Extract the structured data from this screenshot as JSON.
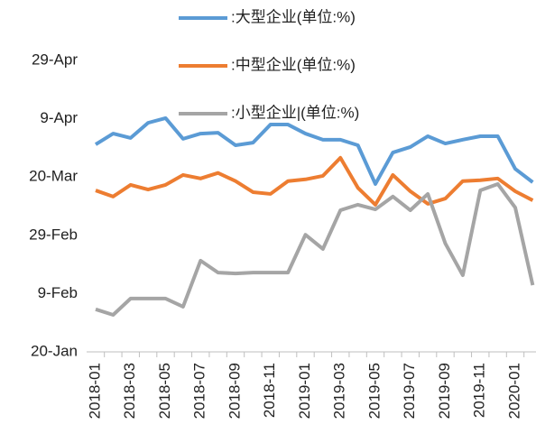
{
  "chart_data": {
    "type": "line",
    "categories": [
      "2018-01",
      null,
      "2018-03",
      null,
      "2018-05",
      null,
      "2018-07",
      null,
      "2018-09",
      null,
      "2018-11",
      null,
      "2019-01",
      null,
      "2019-03",
      null,
      "2019-05",
      null,
      "2019-07",
      null,
      "2019-09",
      null,
      "2019-11",
      null,
      "2020-01",
      null
    ],
    "series": [
      {
        "name": ":大型企业(单位:%)",
        "color": "#5b9bd5",
        "values": [
          91.2,
          94.9,
          93.4,
          98.6,
          100.2,
          93.1,
          94.9,
          95.2,
          90.9,
          91.8,
          98.0,
          98.0,
          94.9,
          92.8,
          92.8,
          90.9,
          77.6,
          88.4,
          90.3,
          94.0,
          91.5,
          92.8,
          94.0,
          94.0,
          82.8,
          78.2
        ]
      },
      {
        "name": ":中型企业(单位:%)",
        "color": "#ed7d31",
        "values": [
          75.4,
          73.3,
          77.3,
          75.7,
          77.3,
          80.7,
          79.5,
          81.4,
          78.6,
          74.8,
          74.2,
          78.6,
          79.2,
          80.4,
          86.6,
          76.3,
          70.5,
          80.7,
          75.1,
          70.8,
          72.6,
          78.6,
          78.9,
          79.5,
          75.1,
          72.0
        ]
      },
      {
        "name": ":小型企业|(单位:%)",
        "color": "#a5a5a5",
        "values": [
          34.6,
          32.7,
          38.3,
          38.3,
          38.3,
          35.5,
          51.3,
          47.2,
          46.9,
          47.2,
          47.2,
          47.2,
          60.2,
          55.3,
          68.6,
          70.5,
          68.9,
          73.3,
          68.6,
          74.2,
          57.2,
          46.3,
          75.4,
          77.6,
          69.5,
          42.9
        ]
      }
    ],
    "ylim": [
      20,
      120
    ],
    "yticks": [
      {
        "value": 20,
        "label": "20-Jan"
      },
      {
        "value": 40,
        "label": "9-Feb"
      },
      {
        "value": 60,
        "label": "29-Feb"
      },
      {
        "value": 80,
        "label": "20-Mar"
      },
      {
        "value": 100,
        "label": "9-Apr"
      },
      {
        "value": 120,
        "label": "29-Apr"
      }
    ],
    "grid": false
  }
}
